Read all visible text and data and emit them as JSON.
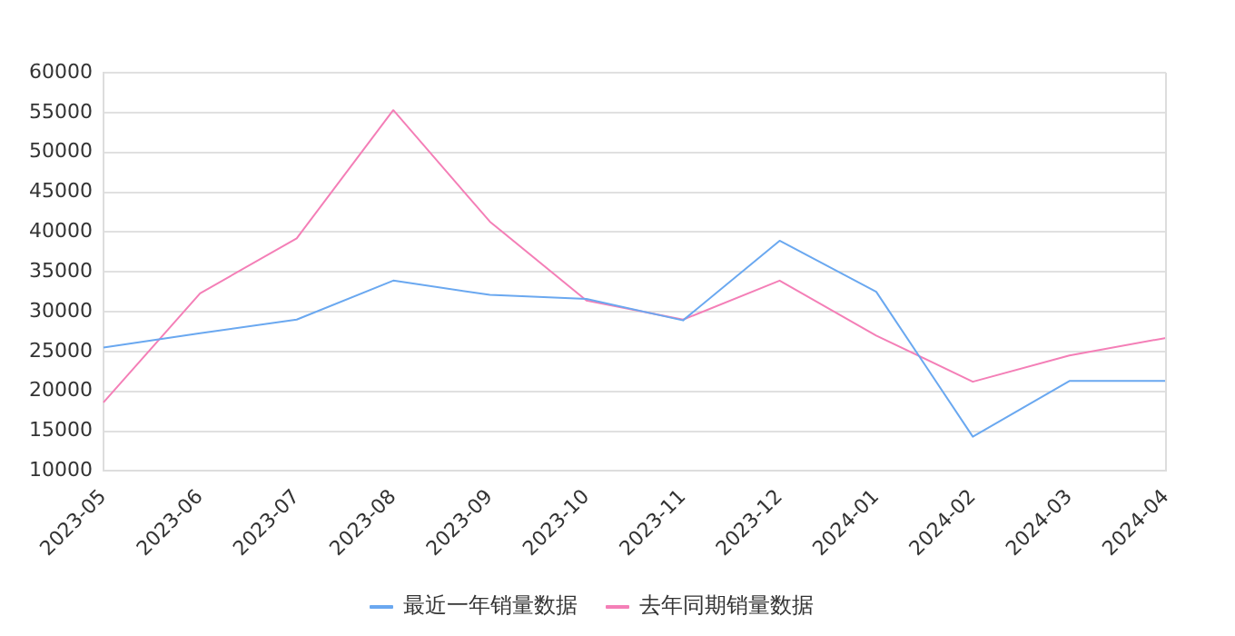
{
  "chart_data": {
    "type": "line",
    "categories": [
      "2023-05",
      "2023-06",
      "2023-07",
      "2023-08",
      "2023-09",
      "2023-10",
      "2023-11",
      "2023-12",
      "2024-01",
      "2024-02",
      "2024-03",
      "2024-04"
    ],
    "series": [
      {
        "name": "最近一年销量数据",
        "color": "#6aa8f0",
        "values": [
          25500,
          27300,
          29000,
          33900,
          32100,
          31600,
          28900,
          38900,
          32500,
          14300,
          21300,
          21300
        ]
      },
      {
        "name": "去年同期销量数据",
        "color": "#f47fb7",
        "values": [
          18600,
          32300,
          39200,
          55300,
          41300,
          31400,
          29000,
          33900,
          27000,
          21200,
          24500,
          26700
        ]
      }
    ],
    "ylim": [
      10000,
      60000
    ],
    "yticks": [
      10000,
      15000,
      20000,
      25000,
      30000,
      35000,
      40000,
      45000,
      50000,
      55000,
      60000
    ],
    "grid": "y",
    "legend": "bottom",
    "marker": "none",
    "line_style": "solid"
  }
}
